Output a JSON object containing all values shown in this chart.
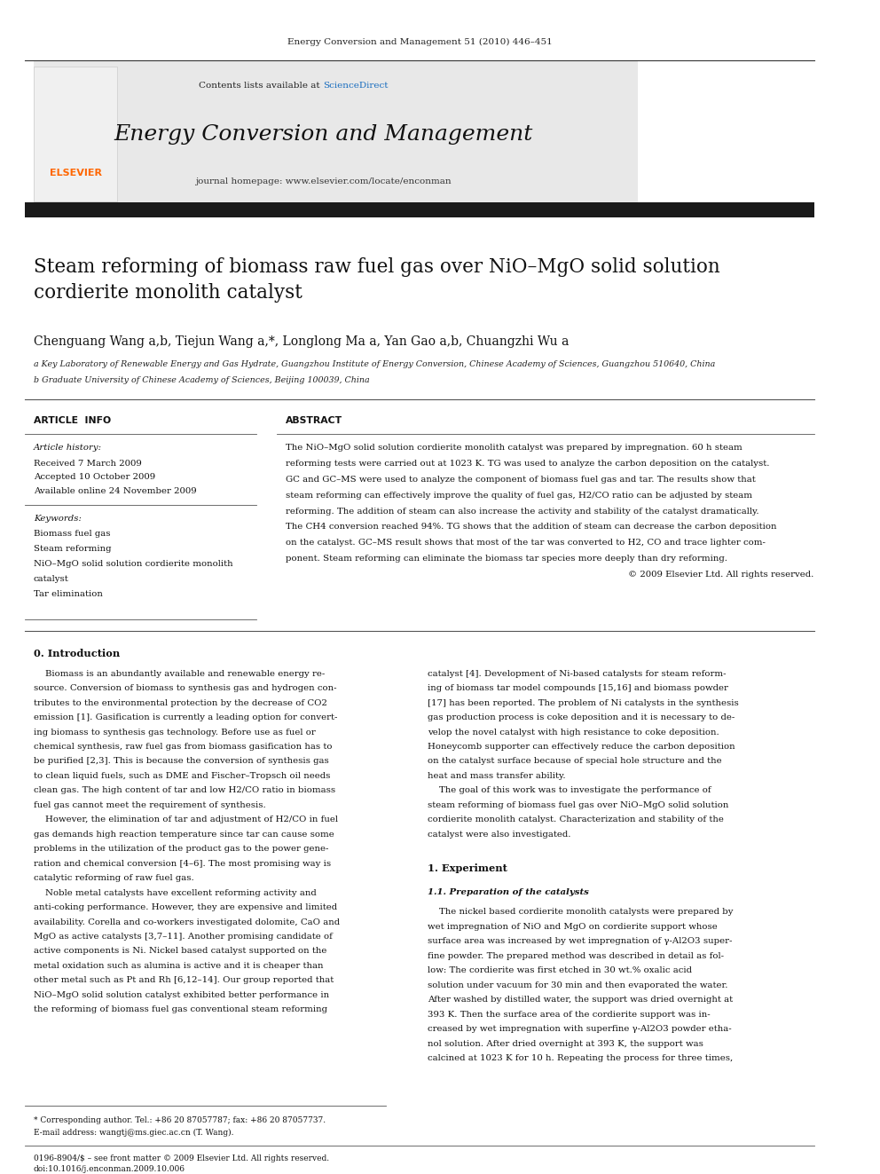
{
  "page_width": 9.92,
  "page_height": 13.23,
  "bg_color": "#ffffff",
  "journal_ref": "Energy Conversion and Management 51 (2010) 446–451",
  "header_bg": "#e8e8e8",
  "sciencedirect_color": "#1a6ebf",
  "journal_title": "Energy Conversion and Management",
  "journal_url": "journal homepage: www.elsevier.com/locate/enconman",
  "elsevier_color": "#ff6600",
  "black_bar_color": "#1a1a1a",
  "paper_title": "Steam reforming of biomass raw fuel gas over NiO–MgO solid solution\ncordierite monolith catalyst",
  "authors": "Chenguang Wang a,b, Tiejun Wang a,*, Longlong Ma a, Yan Gao a,b, Chuangzhi Wu a",
  "affil_a": "a Key Laboratory of Renewable Energy and Gas Hydrate, Guangzhou Institute of Energy Conversion, Chinese Academy of Sciences, Guangzhou 510640, China",
  "affil_b": "b Graduate University of Chinese Academy of Sciences, Beijing 100039, China",
  "article_info_header": "ARTICLE  INFO",
  "abstract_header": "ABSTRACT",
  "article_history_label": "Article history:",
  "received": "Received 7 March 2009",
  "accepted": "Accepted 10 October 2009",
  "available": "Available online 24 November 2009",
  "keywords_label": "Keywords:",
  "keywords": [
    "Biomass fuel gas",
    "Steam reforming",
    "NiO–MgO solid solution cordierite monolith",
    "catalyst",
    "Tar elimination"
  ],
  "abstract_lines": [
    "The NiO–MgO solid solution cordierite monolith catalyst was prepared by impregnation. 60 h steam",
    "reforming tests were carried out at 1023 K. TG was used to analyze the carbon deposition on the catalyst.",
    "GC and GC–MS were used to analyze the component of biomass fuel gas and tar. The results show that",
    "steam reforming can effectively improve the quality of fuel gas, H2/CO ratio can be adjusted by steam",
    "reforming. The addition of steam can also increase the activity and stability of the catalyst dramatically.",
    "The CH4 conversion reached 94%. TG shows that the addition of steam can decrease the carbon deposition",
    "on the catalyst. GC–MS result shows that most of the tar was converted to H2, CO and trace lighter com-",
    "ponent. Steam reforming can eliminate the biomass tar species more deeply than dry reforming.",
    "© 2009 Elsevier Ltd. All rights reserved."
  ],
  "section_0": "0. Introduction",
  "col1_lines": [
    "    Biomass is an abundantly available and renewable energy re-",
    "source. Conversion of biomass to synthesis gas and hydrogen con-",
    "tributes to the environmental protection by the decrease of CO2",
    "emission [1]. Gasification is currently a leading option for convert-",
    "ing biomass to synthesis gas technology. Before use as fuel or",
    "chemical synthesis, raw fuel gas from biomass gasification has to",
    "be purified [2,3]. This is because the conversion of synthesis gas",
    "to clean liquid fuels, such as DME and Fischer–Tropsch oil needs",
    "clean gas. The high content of tar and low H2/CO ratio in biomass",
    "fuel gas cannot meet the requirement of synthesis.",
    "    However, the elimination of tar and adjustment of H2/CO in fuel",
    "gas demands high reaction temperature since tar can cause some",
    "problems in the utilization of the product gas to the power gene-",
    "ration and chemical conversion [4–6]. The most promising way is",
    "catalytic reforming of raw fuel gas.",
    "    Noble metal catalysts have excellent reforming activity and",
    "anti-coking performance. However, they are expensive and limited",
    "availability. Corella and co-workers investigated dolomite, CaO and",
    "MgO as active catalysts [3,7–11]. Another promising candidate of",
    "active components is Ni. Nickel based catalyst supported on the",
    "metal oxidation such as alumina is active and it is cheaper than",
    "other metal such as Pt and Rh [6,12–14]. Our group reported that",
    "NiO–MgO solid solution catalyst exhibited better performance in",
    "the reforming of biomass fuel gas conventional steam reforming"
  ],
  "col2_lines": [
    "catalyst [4]. Development of Ni-based catalysts for steam reform-",
    "ing of biomass tar model compounds [15,16] and biomass powder",
    "[17] has been reported. The problem of Ni catalysts in the synthesis",
    "gas production process is coke deposition and it is necessary to de-",
    "velop the novel catalyst with high resistance to coke deposition.",
    "Honeycomb supporter can effectively reduce the carbon deposition",
    "on the catalyst surface because of special hole structure and the",
    "heat and mass transfer ability.",
    "    The goal of this work was to investigate the performance of",
    "steam reforming of biomass fuel gas over NiO–MgO solid solution",
    "cordierite monolith catalyst. Characterization and stability of the",
    "catalyst were also investigated."
  ],
  "section_1": "1. Experiment",
  "section_1_1": "1.1. Preparation of the catalysts",
  "exp_lines": [
    "    The nickel based cordierite monolith catalysts were prepared by",
    "wet impregnation of NiO and MgO on cordierite support whose",
    "surface area was increased by wet impregnation of γ-Al2O3 super-",
    "fine powder. The prepared method was described in detail as fol-",
    "low: The cordierite was first etched in 30 wt.% oxalic acid",
    "solution under vacuum for 30 min and then evaporated the water.",
    "After washed by distilled water, the support was dried overnight at",
    "393 K. Then the surface area of the cordierite support was in-",
    "creased by wet impregnation with superfine γ-Al2O3 powder etha-",
    "nol solution. After dried overnight at 393 K, the support was",
    "calcined at 1023 K for 10 h. Repeating the process for three times,"
  ],
  "footnote_star": "* Corresponding author. Tel.: +86 20 87057787; fax: +86 20 87057737.",
  "footnote_email": "E-mail address: wangtj@ms.giec.ac.cn (T. Wang).",
  "issn": "0196-8904/$ – see front matter © 2009 Elsevier Ltd. All rights reserved.",
  "doi": "doi:10.1016/j.enconman.2009.10.006"
}
